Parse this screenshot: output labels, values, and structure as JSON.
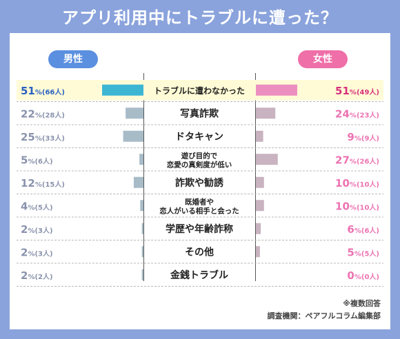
{
  "title": "アプリ利用中にトラブルに遭った？",
  "legend": {
    "male": "男性",
    "female": "女性"
  },
  "footnote": "※複数回答",
  "source": "調査機関：ペアフルコラム編集部",
  "colors": {
    "male_bar": "#a8bcc8",
    "male_highlight_bar": "#3db6d4",
    "female_bar": "#c9b3c0",
    "female_highlight_bar": "#ec8fc0",
    "male_text": "#8a93ad",
    "male_highlight_text": "#2a60c0",
    "female_text": "#ec73b2",
    "female_highlight_text": "#d8307c",
    "highlight_row": "#fffbd6"
  },
  "chart_data": {
    "type": "bar",
    "categories": [
      "トラブルに遭わなかった",
      "写真詐欺",
      "ドタキャン",
      "遊び目的で\n恋愛の真剣度が低い",
      "詐欺や勧誘",
      "既婚者や\n恋人がいる相手と会った",
      "学歴や年齢詐称",
      "その他",
      "金銭トラブル"
    ],
    "series": [
      {
        "name": "男性",
        "values": [
          51,
          22,
          25,
          5,
          12,
          4,
          2,
          2,
          2
        ],
        "counts": [
          66,
          28,
          33,
          6,
          15,
          5,
          3,
          3,
          2
        ]
      },
      {
        "name": "女性",
        "values": [
          51,
          24,
          9,
          27,
          10,
          10,
          6,
          5,
          0
        ],
        "counts": [
          49,
          23,
          9,
          26,
          10,
          10,
          6,
          5,
          0
        ]
      }
    ]
  }
}
